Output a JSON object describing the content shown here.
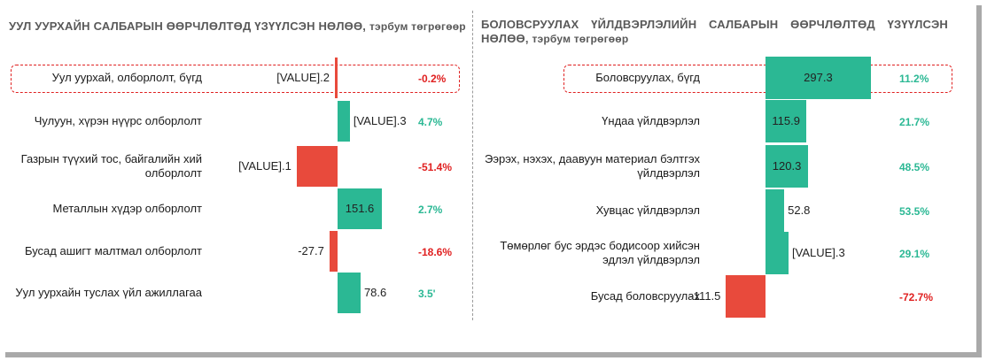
{
  "colors": {
    "positive": "#2bb894",
    "negative": "#e84a3c",
    "pos_text": "#2bb894",
    "neg_text": "#e02020",
    "title": "#595959"
  },
  "chart_data": [
    {
      "type": "bar",
      "orientation": "horizontal",
      "title": "УУЛ УУРХАЙН САЛБАРЫН ӨӨРЧЛӨЛТӨД ҮЗҮҮЛСЭН НӨЛӨӨ,",
      "subtitle": "тэрбум төгрөгөөр",
      "categories": [
        "Уул уурхай, олборлолт, бүгд",
        "Чулуун, хүрэн нүүрс олборлолт",
        "Газрын түүхий тос, байгалийн хий олборлолт",
        "Металлын хүдэр олборлолт",
        "Бусад ашигт малтмал олборлолт",
        "Уул уурхайн туслах үйл ажиллагаа"
      ],
      "values": [
        -2,
        42,
        -140,
        151.6,
        -27.7,
        78.6
      ],
      "value_labels": [
        "[VALUE].2",
        "[VALUE].3",
        "[VALUE].1",
        "151.6",
        "-27.7",
        "78.6"
      ],
      "percent_labels": [
        "-0.2%",
        "4.7%",
        "-51.4%",
        "2.7%",
        "-18.6%",
        "3.5'"
      ],
      "highlighted": [
        0
      ]
    },
    {
      "type": "bar",
      "orientation": "horizontal",
      "title": "БОЛОВСРУУЛАХ ҮЙЛДВЭРЛЭЛИЙН САЛБАРЫН ӨӨРЧЛӨЛТӨД ҮЗҮҮЛСЭН НӨЛӨӨ,",
      "subtitle": "тэрбум төгрөгөөр",
      "categories": [
        "Боловсруулах, бүгд",
        "Үндаа үйлдвэрлэл",
        "Ээрэх, нэхэх, даавуун материал бэлтгэх үйлдвэрлэл",
        "Хувцас үйлдвэрлэл",
        "Төмөрлөг бус эрдэс бодисоор хийсэн эдлэл үйлдвэрлэл",
        "Бусад боловсруулах"
      ],
      "values": [
        297.3,
        115.9,
        120.3,
        52.8,
        65,
        -111.5
      ],
      "value_labels": [
        "297.3",
        "115.9",
        "120.3",
        "52.8",
        "[VALUE].3",
        "-111.5"
      ],
      "percent_labels": [
        "11.2%",
        "21.7%",
        "48.5%",
        "53.5%",
        "29.1%",
        "-72.7%"
      ],
      "highlighted": [
        0
      ]
    }
  ]
}
